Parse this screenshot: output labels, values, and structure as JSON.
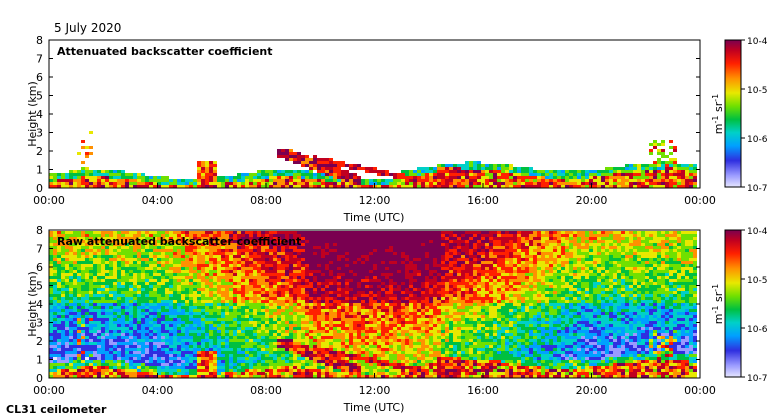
{
  "date": "5 July 2020",
  "instrument": "CL31 ceilometer",
  "chart_data": [
    {
      "type": "heatmap",
      "title": "Attenuated backscatter coefficient",
      "xlabel": "Time (UTC)",
      "ylabel": "Height (km)",
      "xticks": [
        "00:00",
        "04:00",
        "08:00",
        "12:00",
        "16:00",
        "20:00",
        "00:00"
      ],
      "xlim_hours": [
        0,
        24
      ],
      "ylim_km": [
        0,
        8
      ],
      "yticks": [
        "0",
        "1",
        "2",
        "3",
        "4",
        "5",
        "6",
        "7",
        "8"
      ],
      "colorbar": {
        "label": "m-1 sr-1",
        "ticks": [
          "10-7",
          "10-6",
          "10-5",
          "10-4"
        ],
        "range": [
          1e-07,
          0.0001
        ],
        "scale": "log"
      }
    },
    {
      "type": "heatmap",
      "title": "Raw attenuated backscatter coefficient",
      "xlabel": "Time (UTC)",
      "ylabel": "Height (km)",
      "xticks": [
        "00:00",
        "04:00",
        "08:00",
        "12:00",
        "16:00",
        "20:00",
        "00:00"
      ],
      "xlim_hours": [
        0,
        24
      ],
      "ylim_km": [
        0,
        8
      ],
      "yticks": [
        "0",
        "1",
        "2",
        "3",
        "4",
        "5",
        "6",
        "7",
        "8"
      ],
      "colorbar": {
        "label": "m-1 sr-1",
        "ticks": [
          "10-7",
          "10-6",
          "10-5",
          "10-4"
        ],
        "range": [
          1e-07,
          0.0001
        ],
        "scale": "log"
      }
    }
  ],
  "colors": {
    "colormap": [
      "#e6e6ff",
      "#9a9aff",
      "#2f2fe0",
      "#00a0ff",
      "#00d0c8",
      "#00c040",
      "#70e000",
      "#e8e800",
      "#ff9000",
      "#ff2000",
      "#c00020",
      "#7a0050"
    ]
  }
}
